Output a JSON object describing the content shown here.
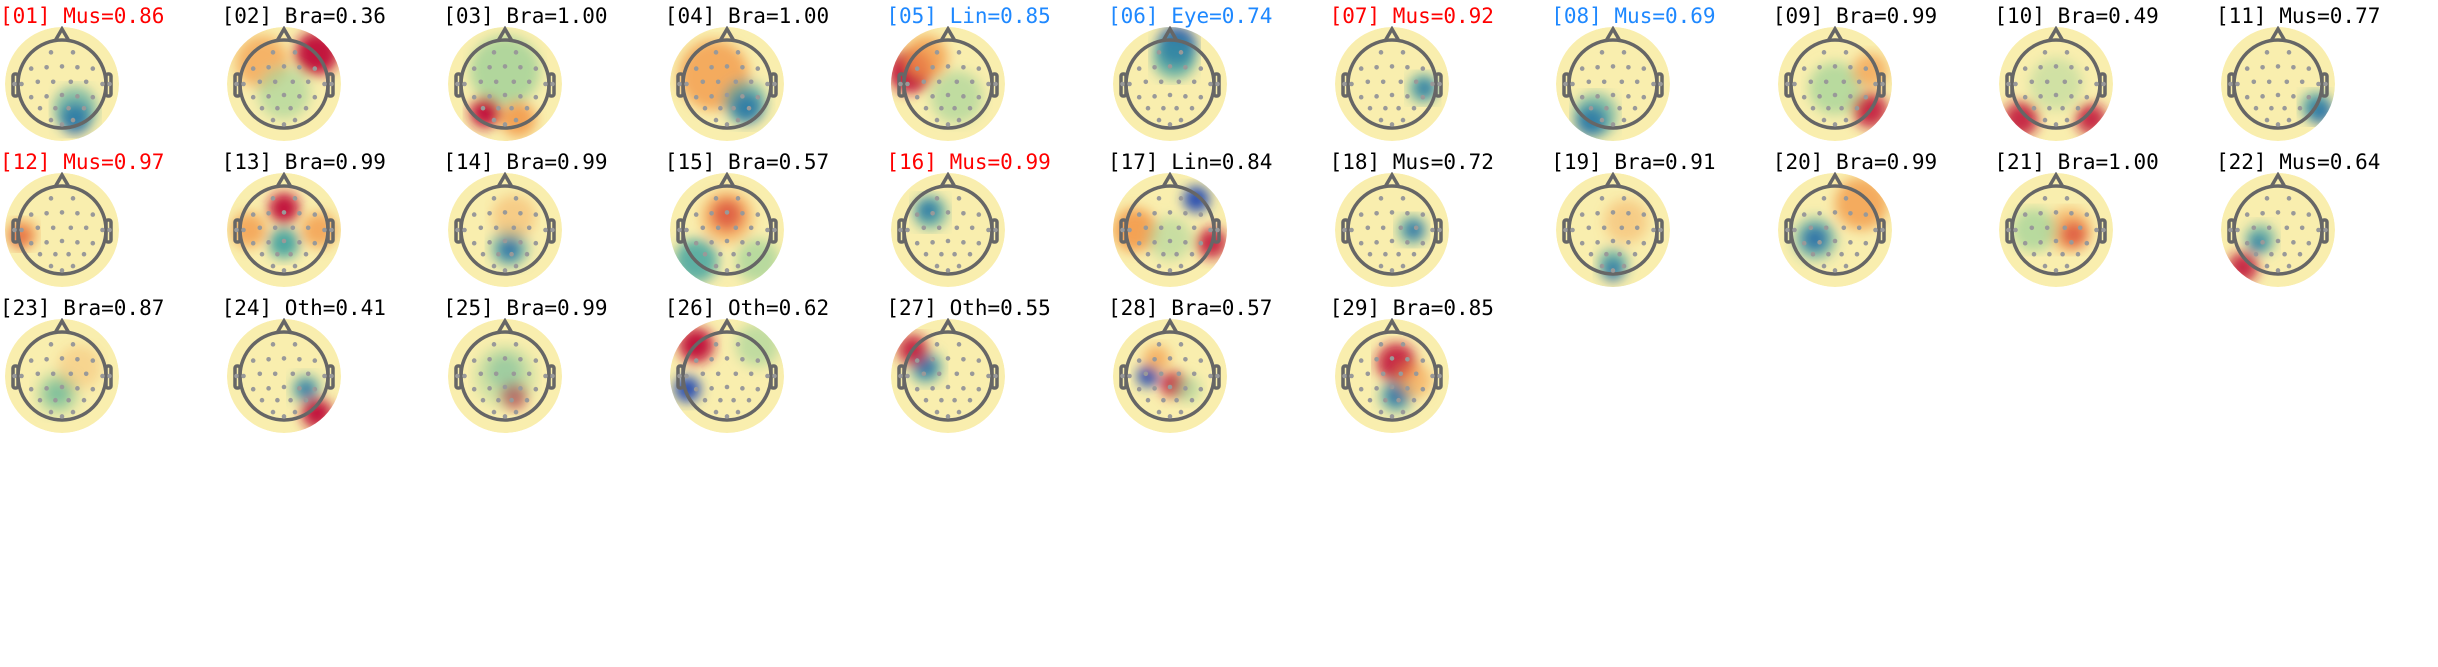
{
  "colors": {
    "muscle_flag": "#ff0000",
    "line_eye_flag": "#1e88ff",
    "default": "#000000"
  },
  "colormap": "diverging red-yellow-blue (Spectral)",
  "components": [
    {
      "title": "[01] Mus=0.86",
      "color": "#ff0000"
    },
    {
      "title": "[02] Bra=0.36",
      "color": "#000000"
    },
    {
      "title": "[03] Bra=1.00",
      "color": "#000000"
    },
    {
      "title": "[04] Bra=1.00",
      "color": "#000000"
    },
    {
      "title": "[05] Lin=0.85",
      "color": "#1e88ff"
    },
    {
      "title": "[06] Eye=0.74",
      "color": "#1e88ff"
    },
    {
      "title": "[07] Mus=0.92",
      "color": "#ff0000"
    },
    {
      "title": "[08] Mus=0.69",
      "color": "#1e88ff"
    },
    {
      "title": "[09] Bra=0.99",
      "color": "#000000"
    },
    {
      "title": "[10] Bra=0.49",
      "color": "#000000"
    },
    {
      "title": "[11] Mus=0.77",
      "color": "#000000"
    },
    {
      "title": "[12] Mus=0.97",
      "color": "#ff0000"
    },
    {
      "title": "[13] Bra=0.99",
      "color": "#000000"
    },
    {
      "title": "[14] Bra=0.99",
      "color": "#000000"
    },
    {
      "title": "[15] Bra=0.57",
      "color": "#000000"
    },
    {
      "title": "[16] Mus=0.99",
      "color": "#ff0000"
    },
    {
      "title": "[17] Lin=0.84",
      "color": "#000000"
    },
    {
      "title": "[18] Mus=0.72",
      "color": "#000000"
    },
    {
      "title": "[19] Bra=0.91",
      "color": "#000000"
    },
    {
      "title": "[20] Bra=0.99",
      "color": "#000000"
    },
    {
      "title": "[21] Bra=1.00",
      "color": "#000000"
    },
    {
      "title": "[22] Mus=0.64",
      "color": "#000000"
    },
    {
      "title": "[23] Bra=0.87",
      "color": "#000000"
    },
    {
      "title": "[24] Oth=0.41",
      "color": "#000000"
    },
    {
      "title": "[25] Bra=0.99",
      "color": "#000000"
    },
    {
      "title": "[26] Oth=0.62",
      "color": "#000000"
    },
    {
      "title": "[27] Oth=0.55",
      "color": "#000000"
    },
    {
      "title": "[28] Bra=0.57",
      "color": "#000000"
    },
    {
      "title": "[29] Bra=0.85",
      "color": "#000000"
    }
  ]
}
